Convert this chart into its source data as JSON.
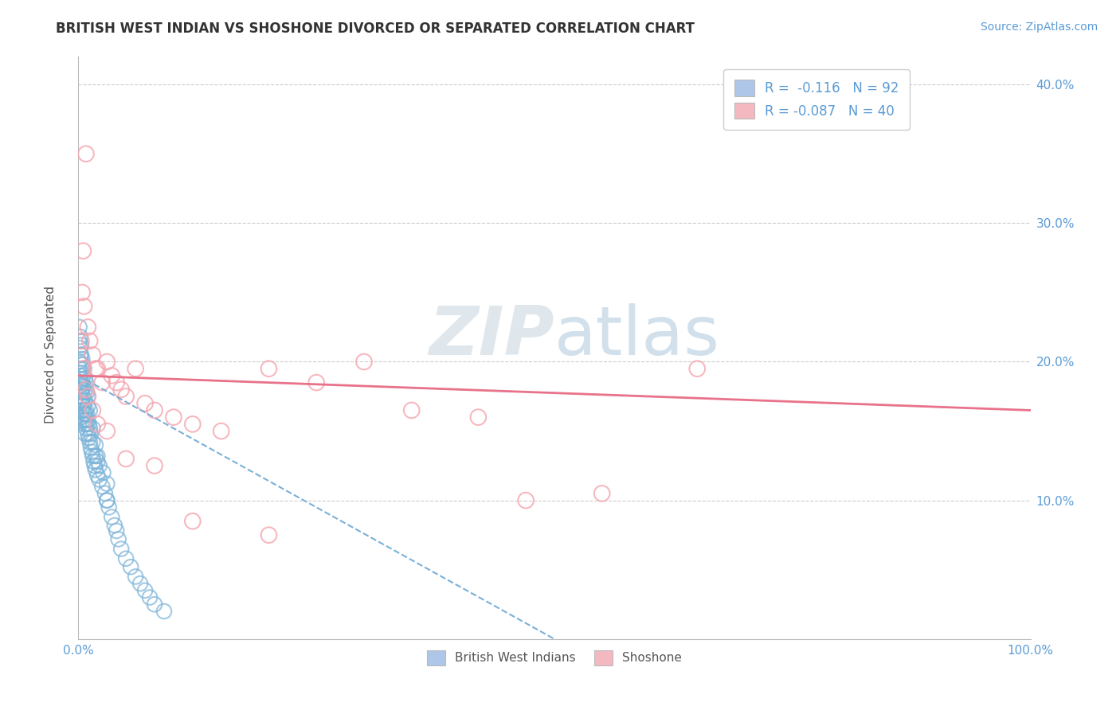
{
  "title": "BRITISH WEST INDIAN VS SHOSHONE DIVORCED OR SEPARATED CORRELATION CHART",
  "source_text": "Source: ZipAtlas.com",
  "ylabel": "Divorced or Separated",
  "watermark_zip": "ZIP",
  "watermark_atlas": "atlas",
  "legend_entries": [
    {
      "label": "R =  -0.116   N = 92",
      "color": "#aec6e8"
    },
    {
      "label": "R = -0.087   N = 40",
      "color": "#f4b8c1"
    }
  ],
  "xlim": [
    0.0,
    1.0
  ],
  "ylim": [
    0.0,
    0.42
  ],
  "ytick_labels": [
    "10.0%",
    "20.0%",
    "30.0%",
    "40.0%"
  ],
  "ytick_positions": [
    0.1,
    0.2,
    0.3,
    0.4
  ],
  "grid_color": "#cccccc",
  "background_color": "#ffffff",
  "blue_color": "#7bb3d8",
  "pink_color": "#f4a6b0",
  "trendline_blue_color": "#7ab0d8",
  "trendline_pink_color": "#e8728a",
  "blue_scatter_x": [
    0.001,
    0.001,
    0.001,
    0.002,
    0.002,
    0.002,
    0.002,
    0.003,
    0.003,
    0.003,
    0.003,
    0.003,
    0.003,
    0.004,
    0.004,
    0.004,
    0.004,
    0.004,
    0.005,
    0.005,
    0.005,
    0.005,
    0.005,
    0.006,
    0.006,
    0.006,
    0.006,
    0.007,
    0.007,
    0.007,
    0.008,
    0.008,
    0.008,
    0.009,
    0.009,
    0.01,
    0.01,
    0.01,
    0.011,
    0.011,
    0.012,
    0.012,
    0.013,
    0.013,
    0.014,
    0.015,
    0.015,
    0.016,
    0.017,
    0.018,
    0.018,
    0.02,
    0.02,
    0.022,
    0.022,
    0.025,
    0.026,
    0.028,
    0.03,
    0.03,
    0.032,
    0.035,
    0.038,
    0.04,
    0.042,
    0.045,
    0.05,
    0.055,
    0.06,
    0.065,
    0.07,
    0.075,
    0.08,
    0.09,
    0.001,
    0.001,
    0.002,
    0.002,
    0.003,
    0.003,
    0.004,
    0.005,
    0.006,
    0.007,
    0.008,
    0.009,
    0.01,
    0.012,
    0.015,
    0.018,
    0.02,
    0.03
  ],
  "blue_scatter_y": [
    0.185,
    0.195,
    0.2,
    0.175,
    0.183,
    0.19,
    0.205,
    0.178,
    0.185,
    0.192,
    0.198,
    0.16,
    0.17,
    0.172,
    0.18,
    0.187,
    0.195,
    0.165,
    0.168,
    0.175,
    0.182,
    0.19,
    0.158,
    0.163,
    0.17,
    0.178,
    0.155,
    0.162,
    0.172,
    0.148,
    0.158,
    0.165,
    0.152,
    0.155,
    0.162,
    0.148,
    0.158,
    0.168,
    0.145,
    0.155,
    0.142,
    0.152,
    0.138,
    0.148,
    0.135,
    0.132,
    0.142,
    0.128,
    0.125,
    0.122,
    0.132,
    0.118,
    0.128,
    0.115,
    0.125,
    0.11,
    0.12,
    0.105,
    0.1,
    0.112,
    0.095,
    0.088,
    0.082,
    0.078,
    0.072,
    0.065,
    0.058,
    0.052,
    0.045,
    0.04,
    0.035,
    0.03,
    0.025,
    0.02,
    0.215,
    0.225,
    0.21,
    0.218,
    0.205,
    0.212,
    0.202,
    0.198,
    0.195,
    0.188,
    0.185,
    0.178,
    0.175,
    0.165,
    0.152,
    0.14,
    0.132,
    0.1
  ],
  "pink_scatter_x": [
    0.003,
    0.004,
    0.005,
    0.006,
    0.008,
    0.01,
    0.012,
    0.015,
    0.018,
    0.02,
    0.025,
    0.03,
    0.035,
    0.04,
    0.045,
    0.05,
    0.06,
    0.07,
    0.08,
    0.1,
    0.12,
    0.15,
    0.2,
    0.25,
    0.3,
    0.35,
    0.42,
    0.47,
    0.55,
    0.65,
    0.005,
    0.008,
    0.01,
    0.015,
    0.02,
    0.03,
    0.05,
    0.08,
    0.12,
    0.2
  ],
  "pink_scatter_y": [
    0.215,
    0.25,
    0.28,
    0.24,
    0.35,
    0.225,
    0.215,
    0.205,
    0.195,
    0.195,
    0.185,
    0.2,
    0.19,
    0.185,
    0.18,
    0.175,
    0.195,
    0.17,
    0.165,
    0.16,
    0.155,
    0.15,
    0.195,
    0.185,
    0.2,
    0.165,
    0.16,
    0.1,
    0.105,
    0.195,
    0.195,
    0.18,
    0.175,
    0.165,
    0.155,
    0.15,
    0.13,
    0.125,
    0.085,
    0.075
  ],
  "blue_trend_x": [
    0.0,
    0.5
  ],
  "blue_trend_y": [
    0.19,
    0.0
  ],
  "pink_trend_x": [
    0.0,
    1.0
  ],
  "pink_trend_y": [
    0.19,
    0.165
  ]
}
